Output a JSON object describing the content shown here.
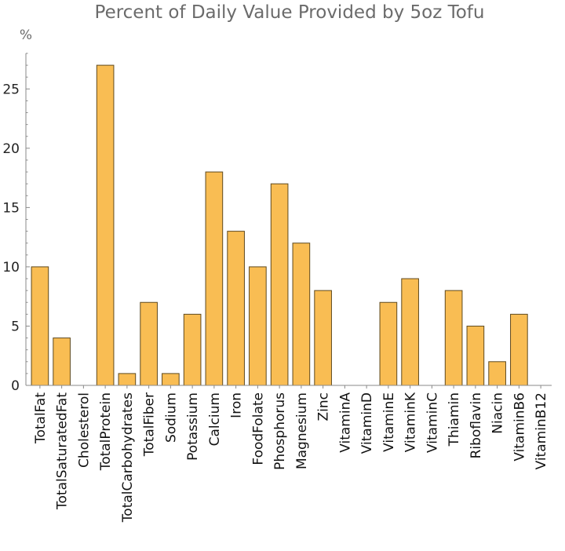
{
  "chart_data": {
    "type": "bar",
    "title": "Percent of Daily Value Provided by 5oz Tofu",
    "xlabel": "",
    "ylabel": "%",
    "ylim": [
      0,
      28
    ],
    "yticks": [
      0,
      5,
      10,
      15,
      20,
      25
    ],
    "bar_color": "#f9bd53",
    "categories": [
      "TotalFat",
      "TotalSaturatedFat",
      "Cholesterol",
      "TotalProtein",
      "TotalCarbohydrates",
      "TotalFiber",
      "Sodium",
      "Potassium",
      "Calcium",
      "Iron",
      "FoodFolate",
      "Phosphorus",
      "Magnesium",
      "Zinc",
      "VitaminA",
      "VitaminD",
      "VitaminE",
      "VitaminK",
      "VitaminC",
      "Thiamin",
      "Riboflavin",
      "Niacin",
      "VitaminB6",
      "VitaminB12"
    ],
    "values": [
      10,
      4,
      0,
      27,
      1,
      7,
      1,
      6,
      18,
      13,
      10,
      17,
      12,
      8,
      0,
      0,
      7,
      9,
      0,
      8,
      5,
      2,
      6,
      0
    ]
  }
}
